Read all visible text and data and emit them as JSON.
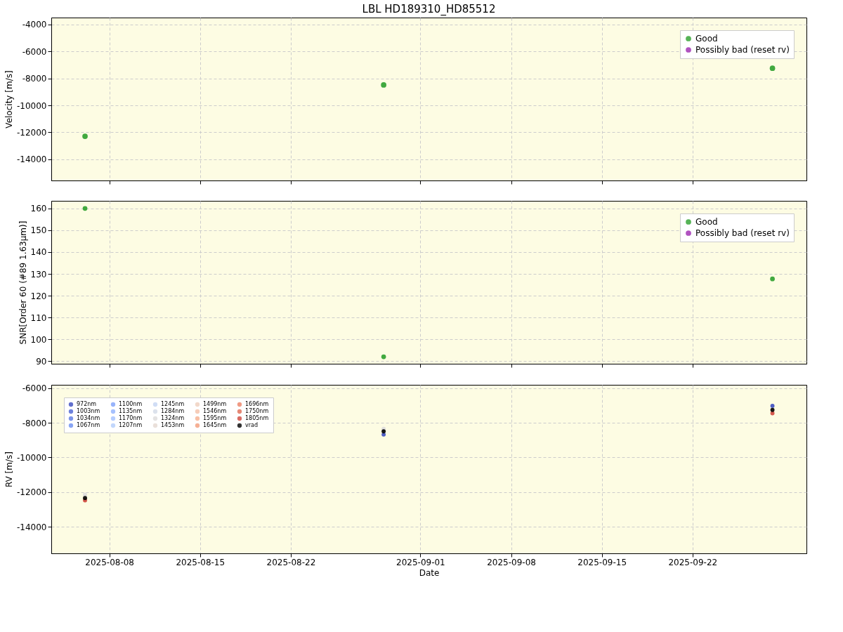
{
  "chart_data": [
    {
      "type": "scatter",
      "title": "LBL HD189310_HD85512",
      "ylabel": "Velocity [m/s]",
      "x": [
        "2025-08-06T03:00",
        "2025-08-29T04:00",
        "2025-09-28T04:00"
      ],
      "xlim": [
        "2025-08-03T12:30",
        "2025-09-30T19:00"
      ],
      "xticks": [
        "2025-08-08",
        "2025-08-15",
        "2025-08-22",
        "2025-09-01",
        "2025-09-08",
        "2025-09-15",
        "2025-09-22"
      ],
      "ylim": [
        -15570,
        -3480
      ],
      "yticks": [
        -14000,
        -12000,
        -10000,
        -8000,
        -6000,
        -4000
      ],
      "grid": true,
      "legend": "top right",
      "marker": "circle",
      "tick_labels": "y",
      "series": [
        {
          "name": "Good",
          "color": "#2ca02c",
          "values": [
            -12290,
            -8480,
            -7240
          ]
        },
        {
          "name": "Possibly bad (reset rv)",
          "color": "#9c27b0",
          "values": [
            null,
            null,
            null
          ]
        }
      ]
    },
    {
      "type": "scatter",
      "ylabel": "SNR[Order 60 (#89 1.63μm)]",
      "x": [
        "2025-08-06T03:00",
        "2025-08-29T04:00",
        "2025-09-28T04:00"
      ],
      "xlim": [
        "2025-08-03T12:30",
        "2025-09-30T19:00"
      ],
      "xticks": [
        "2025-08-08",
        "2025-08-15",
        "2025-08-22",
        "2025-09-01",
        "2025-09-08",
        "2025-09-15",
        "2025-09-22"
      ],
      "ylim": [
        88.8,
        163.5
      ],
      "yticks": [
        90,
        100,
        110,
        120,
        130,
        140,
        150,
        160
      ],
      "grid": true,
      "legend": "top right",
      "marker": "circle",
      "tick_labels": "y",
      "series": [
        {
          "name": "Good",
          "color": "#2ca02c",
          "values": [
            160,
            92,
            127.7
          ]
        },
        {
          "name": "Possibly bad (reset rv)",
          "color": "#9c27b0",
          "values": [
            null,
            null,
            null
          ]
        }
      ]
    },
    {
      "type": "scatter",
      "xlabel": "Date",
      "ylabel": "RV [m/s]",
      "x": [
        "2025-08-06T03:00",
        "2025-08-29T04:00",
        "2025-09-28T04:00"
      ],
      "xlim": [
        "2025-08-03T12:30",
        "2025-09-30T19:00"
      ],
      "xticks": [
        "2025-08-08",
        "2025-08-15",
        "2025-08-22",
        "2025-09-01",
        "2025-09-08",
        "2025-09-15",
        "2025-09-22"
      ],
      "ylim": [
        -15530,
        -5810
      ],
      "yticks": [
        -14000,
        -12000,
        -10000,
        -8000,
        -6000
      ],
      "grid": true,
      "legend": "top left",
      "marker": "circle",
      "series": [
        {
          "name": "972nm",
          "color": "#3b4cc0",
          "values": [
            null,
            -8680,
            -7020
          ]
        },
        {
          "name": "1003nm",
          "color": "#4a63d3",
          "values": [
            null,
            null,
            null
          ]
        },
        {
          "name": "1034nm",
          "color": "#5b7ae5",
          "values": [
            null,
            null,
            null
          ]
        },
        {
          "name": "1067nm",
          "color": "#6c8ff1",
          "values": [
            null,
            null,
            null
          ]
        },
        {
          "name": "1100nm",
          "color": "#7ea1fa",
          "values": [
            null,
            null,
            null
          ]
        },
        {
          "name": "1135nm",
          "color": "#90b2fe",
          "values": [
            null,
            null,
            null
          ]
        },
        {
          "name": "1170nm",
          "color": "#a2c1ff",
          "values": [
            null,
            null,
            null
          ]
        },
        {
          "name": "1207nm",
          "color": "#b3cdfb",
          "values": [
            null,
            null,
            null
          ]
        },
        {
          "name": "1245nm",
          "color": "#c4d5f3",
          "values": [
            null,
            null,
            null
          ]
        },
        {
          "name": "1284nm",
          "color": "#d3dbe7",
          "values": [
            null,
            null,
            null
          ]
        },
        {
          "name": "1324nm",
          "color": "#dddcdc",
          "values": [
            -12150,
            -8350,
            null
          ]
        },
        {
          "name": "1453nm",
          "color": "#e5d8d1",
          "values": [
            null,
            null,
            null
          ]
        },
        {
          "name": "1499nm",
          "color": "#efcebd",
          "values": [
            null,
            null,
            null
          ]
        },
        {
          "name": "1546nm",
          "color": "#f4c0a7",
          "values": [
            null,
            null,
            null
          ]
        },
        {
          "name": "1595nm",
          "color": "#f6af8e",
          "values": [
            null,
            null,
            null
          ]
        },
        {
          "name": "1645nm",
          "color": "#f39c7a",
          "values": [
            null,
            null,
            null
          ]
        },
        {
          "name": "1696nm",
          "color": "#ec8165",
          "values": [
            null,
            null,
            null
          ]
        },
        {
          "name": "1750nm",
          "color": "#e06b54",
          "values": [
            null,
            null,
            null
          ]
        },
        {
          "name": "1805nm",
          "color": "#d0473d",
          "values": [
            -12470,
            null,
            -7450
          ]
        },
        {
          "name": "vrad",
          "color": "#000000",
          "values": [
            -12340,
            -8490,
            -7260
          ]
        }
      ]
    }
  ]
}
